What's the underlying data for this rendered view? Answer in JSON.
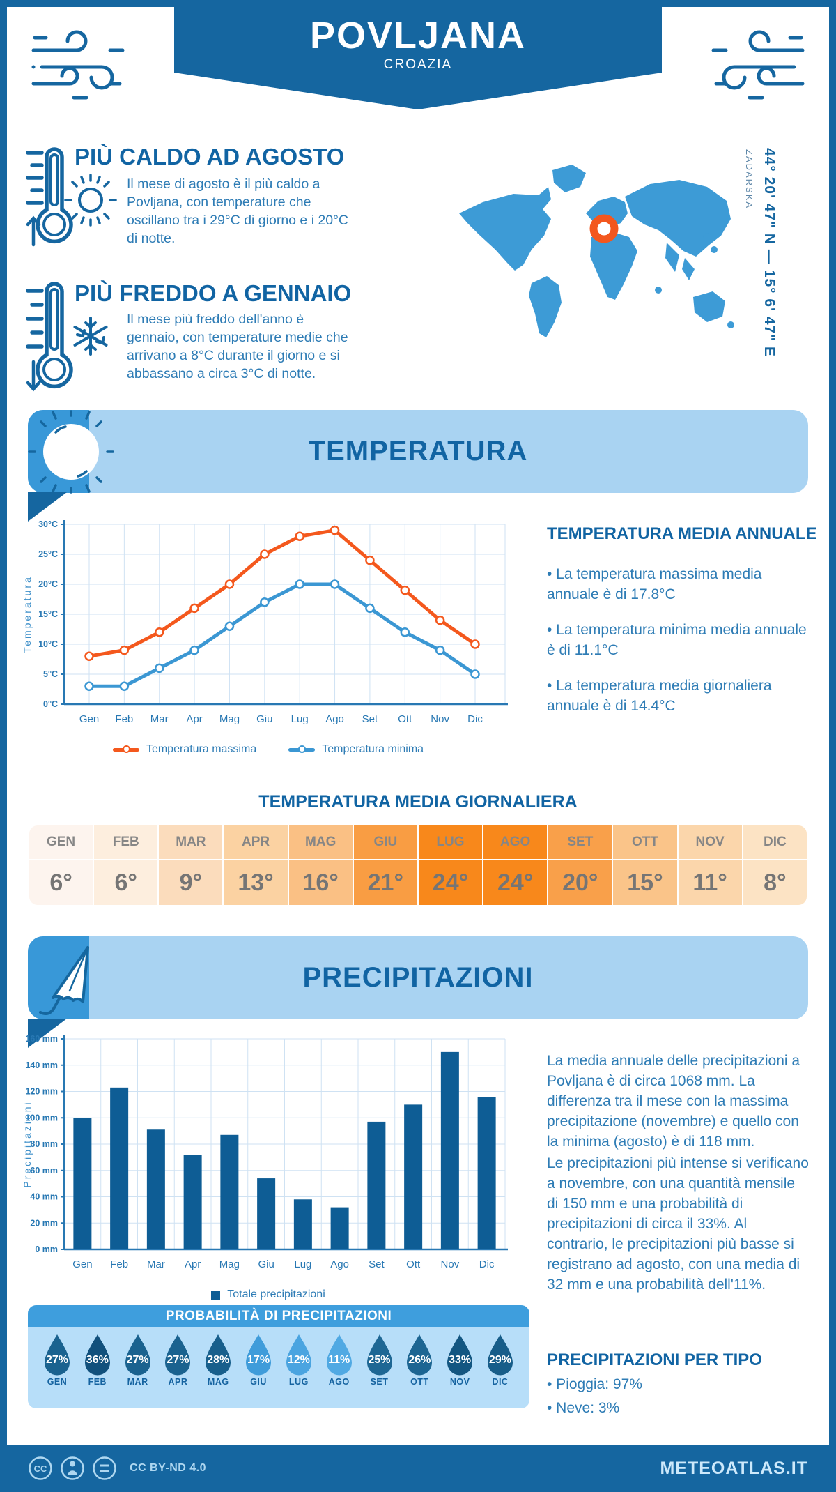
{
  "header": {
    "title": "POVLJANA",
    "subtitle": "CROAZIA"
  },
  "hottest": {
    "title": "PIÙ CALDO AD AGOSTO",
    "text": "Il mese di agosto è il più caldo a Povljana, con temperature che oscillano tra i 29°C di giorno e i 20°C di notte."
  },
  "coldest": {
    "title": "PIÙ FREDDO A GENNAIO",
    "text": "Il mese più freddo dell'anno è gennaio, con temperature medie che arrivano a 8°C durante il giorno e si abbassano a circa 3°C di notte."
  },
  "map": {
    "coordinates": "44° 20' 47\" N — 15° 6' 47\" E",
    "region": "ZADARSKA"
  },
  "temperature_section": {
    "banner": "TEMPERATURA",
    "annual": {
      "title": "TEMPERATURA MEDIA ANNUALE",
      "bullets": [
        "• La temperatura massima media annuale è di 17.8°C",
        "• La temperatura minima media annuale è di 11.1°C",
        "• La temperatura media giornaliera annuale è di 14.4°C"
      ]
    },
    "daily": {
      "title": "TEMPERATURA MEDIA GIORNALIERA",
      "months": [
        "GEN",
        "FEB",
        "MAR",
        "APR",
        "MAG",
        "GIU",
        "LUG",
        "AGO",
        "SET",
        "OTT",
        "NOV",
        "DIC"
      ],
      "values": [
        "6°",
        "6°",
        "9°",
        "13°",
        "16°",
        "21°",
        "24°",
        "24°",
        "20°",
        "15°",
        "11°",
        "8°"
      ],
      "cell_colors": [
        "#fdf4ee",
        "#fdeede",
        "#fbdcbc",
        "#fbd2a2",
        "#fac084",
        "#f99d43",
        "#f8881b",
        "#f8881b",
        "#f9a04a",
        "#fac489",
        "#fbd6ab",
        "#fce3c4"
      ]
    }
  },
  "precipitation_section": {
    "banner": "PRECIPITAZIONI",
    "paragraph1": "La media annuale delle precipitazioni a Povljana è di circa 1068 mm. La differenza tra il mese con la massima precipitazione (novembre) e quello con la minima (agosto) è di 118 mm.",
    "paragraph2": "Le precipitazioni più intense si verificano a novembre, con una quantità mensile di 150 mm e una probabilità di precipitazioni di circa il 33%. Al contrario, le precipitazioni più basse si registrano ad agosto, con una media di 32 mm e una probabilità dell'11%.",
    "probability": {
      "title": "PROBABILITÀ DI PRECIPITAZIONI",
      "months": [
        "GEN",
        "FEB",
        "MAR",
        "APR",
        "MAG",
        "GIU",
        "LUG",
        "AGO",
        "SET",
        "OTT",
        "NOV",
        "DIC"
      ],
      "values": [
        "27%",
        "36%",
        "27%",
        "27%",
        "28%",
        "17%",
        "12%",
        "11%",
        "25%",
        "26%",
        "33%",
        "29%"
      ],
      "colors": [
        "#1a628f",
        "#11507c",
        "#1a628f",
        "#1a628f",
        "#185f8c",
        "#3f9cda",
        "#4aa4e0",
        "#50a9e3",
        "#1e6794",
        "#1c6592",
        "#135681",
        "#175d89"
      ]
    },
    "by_type": {
      "title": "PRECIPITAZIONI PER TIPO",
      "bullets": [
        "• Pioggia: 97%",
        "• Neve: 3%"
      ]
    }
  },
  "chart_data": [
    {
      "type": "line",
      "title": "Temperatura",
      "categories": [
        "Gen",
        "Feb",
        "Mar",
        "Apr",
        "Mag",
        "Giu",
        "Lug",
        "Ago",
        "Set",
        "Ott",
        "Nov",
        "Dic"
      ],
      "series": [
        {
          "name": "Temperatura massima",
          "color": "#f4581d",
          "values": [
            8,
            9,
            12,
            16,
            20,
            25,
            28,
            29,
            24,
            19,
            14,
            10
          ]
        },
        {
          "name": "Temperatura minima",
          "color": "#3b97d3",
          "values": [
            3,
            3,
            6,
            9,
            13,
            17,
            20,
            20,
            16,
            12,
            9,
            5
          ]
        }
      ],
      "xlabel": "",
      "ylabel": "Temperatura",
      "ylim": [
        0,
        30
      ],
      "ystep": 5,
      "ytick_suffix": "°C",
      "grid": true,
      "legend_position": "bottom"
    },
    {
      "type": "bar",
      "title": "Precipitazioni",
      "categories": [
        "Gen",
        "Feb",
        "Mar",
        "Apr",
        "Mag",
        "Giu",
        "Lug",
        "Ago",
        "Set",
        "Ott",
        "Nov",
        "Dic"
      ],
      "series": [
        {
          "name": "Totale precipitazioni",
          "color": "#0e5d95",
          "values": [
            100,
            123,
            91,
            72,
            87,
            54,
            38,
            32,
            97,
            110,
            150,
            116
          ]
        }
      ],
      "xlabel": "",
      "ylabel": "Precipitazioni",
      "ylim": [
        0,
        160
      ],
      "ystep": 20,
      "ytick_suffix": " mm",
      "grid": true,
      "legend_position": "bottom"
    }
  ],
  "footer": {
    "license": "CC BY-ND 4.0",
    "site": "METEOATLAS.IT"
  },
  "colors": {
    "primary": "#1566a0",
    "heading": "#1164a3",
    "body_text": "#2e7cb5",
    "banner_light": "#a9d3f2",
    "banner_cap": "#3898d8",
    "mid_blue": "#3e9edd",
    "map_blue": "#3d9bd6",
    "marker_orange": "#f3571e",
    "grid": "#cfe2f3",
    "axis": "#2878b3",
    "tick": "#2878b3",
    "ylabel": "#3d8fc9",
    "panel_bg": "#b7def9",
    "footer_text": "#aed7f0"
  }
}
